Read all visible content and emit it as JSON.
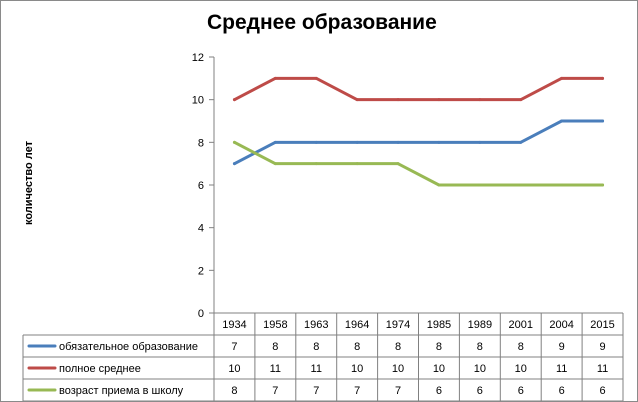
{
  "title": "Среднее образование",
  "chart_data": {
    "type": "line",
    "title": "Среднее образование",
    "ylabel": "количество лет",
    "xlabel": "",
    "ylim": [
      0,
      12
    ],
    "yticks": [
      0,
      2,
      4,
      6,
      8,
      10,
      12
    ],
    "grid": false,
    "legend": "table below plot",
    "categories": [
      "1934",
      "1958",
      "1963",
      "1964",
      "1974",
      "1985",
      "1989",
      "2001",
      "2004",
      "2015"
    ],
    "series": [
      {
        "name": "обязательное образование",
        "color": "#4a7ebb",
        "values": [
          7,
          8,
          8,
          8,
          8,
          8,
          8,
          8,
          9,
          9
        ]
      },
      {
        "name": "полное среднее",
        "color": "#be4b48",
        "values": [
          10,
          11,
          11,
          10,
          10,
          10,
          10,
          10,
          11,
          11
        ]
      },
      {
        "name": "возраст приема в школу",
        "color": "#98b954",
        "values": [
          8,
          7,
          7,
          7,
          7,
          6,
          6,
          6,
          6,
          6
        ]
      }
    ]
  }
}
